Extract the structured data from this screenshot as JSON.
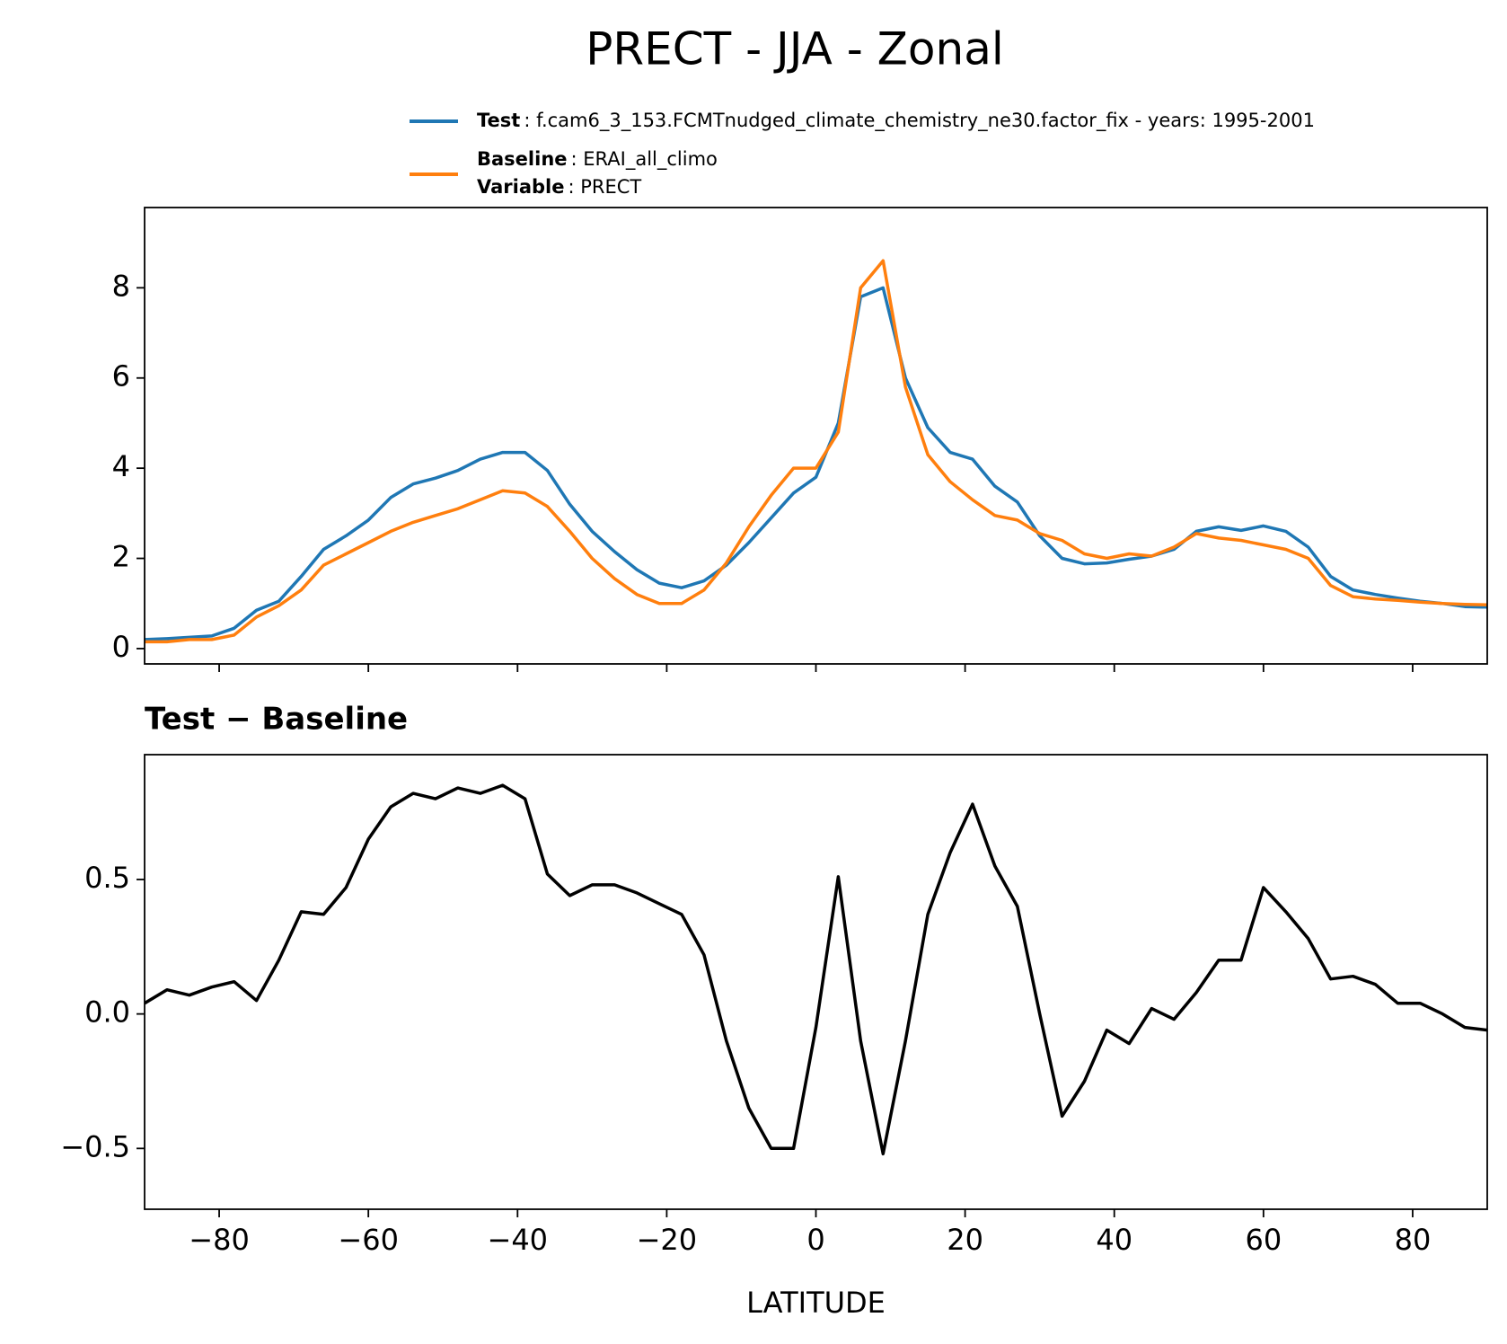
{
  "title": "PRECT - JJA - Zonal",
  "chart_data": [
    {
      "type": "line",
      "legend": "upper right",
      "legend_details": [
        ": f.cam6_3_153.FCMTnudged_climate_chemistry_ne30.factor_fix - years: 1995-2001",
        ": ERAI_all_climo"
      ],
      "legend_extra": {
        "name": "Variable",
        "detail": ": PRECT"
      },
      "x": [
        -90,
        -87,
        -84,
        -81,
        -78,
        -75,
        -72,
        -69,
        -66,
        -63,
        -60,
        -57,
        -54,
        -51,
        -48,
        -45,
        -42,
        -39,
        -36,
        -33,
        -30,
        -27,
        -24,
        -21,
        -18,
        -15,
        -12,
        -9,
        -6,
        -3,
        0,
        3,
        6,
        9,
        12,
        15,
        18,
        21,
        24,
        27,
        30,
        33,
        36,
        39,
        42,
        45,
        48,
        51,
        54,
        57,
        60,
        63,
        66,
        69,
        72,
        75,
        78,
        81,
        84,
        87,
        90
      ],
      "series": [
        {
          "name": "Test",
          "color": "#1f77b4",
          "values": [
            0.2,
            0.22,
            0.25,
            0.28,
            0.45,
            0.85,
            1.05,
            1.6,
            2.2,
            2.5,
            2.85,
            3.35,
            3.65,
            3.78,
            3.95,
            4.2,
            4.35,
            4.35,
            3.95,
            3.2,
            2.6,
            2.15,
            1.75,
            1.45,
            1.35,
            1.5,
            1.85,
            2.35,
            2.9,
            3.45,
            3.8,
            5.0,
            7.8,
            8.0,
            6.0,
            4.9,
            4.35,
            4.2,
            3.6,
            3.25,
            2.5,
            2.0,
            1.88,
            1.9,
            1.98,
            2.05,
            2.2,
            2.6,
            2.7,
            2.62,
            2.72,
            2.6,
            2.25,
            1.6,
            1.3,
            1.2,
            1.12,
            1.05,
            1.0,
            0.93,
            0.92
          ]
        },
        {
          "name": "Baseline",
          "color": "#ff7f0e",
          "values": [
            0.15,
            0.15,
            0.2,
            0.2,
            0.3,
            0.7,
            0.95,
            1.3,
            1.85,
            2.1,
            2.35,
            2.6,
            2.8,
            2.95,
            3.1,
            3.3,
            3.5,
            3.45,
            3.15,
            2.6,
            2.0,
            1.55,
            1.2,
            1.0,
            1.0,
            1.3,
            1.9,
            2.7,
            3.4,
            4.0,
            4.0,
            4.8,
            8.0,
            8.6,
            5.8,
            4.3,
            3.7,
            3.3,
            2.95,
            2.85,
            2.55,
            2.4,
            2.1,
            2.0,
            2.1,
            2.05,
            2.25,
            2.55,
            2.45,
            2.4,
            2.3,
            2.2,
            2.0,
            1.4,
            1.15,
            1.1,
            1.07,
            1.03,
            1.0,
            0.98,
            0.97
          ]
        }
      ],
      "xlim": [
        -90,
        90
      ],
      "xticks": [
        -80,
        -60,
        -40,
        -20,
        0,
        20,
        40,
        60,
        80
      ],
      "ylim": [
        -0.34,
        9.78
      ],
      "yticks": [
        0,
        2,
        4,
        6,
        8
      ]
    },
    {
      "type": "line",
      "title": "Test − Baseline",
      "x_label": "LATITUDE",
      "color": "#000000",
      "x": [
        -90,
        -87,
        -84,
        -81,
        -78,
        -75,
        -72,
        -69,
        -66,
        -63,
        -60,
        -57,
        -54,
        -51,
        -48,
        -45,
        -42,
        -39,
        -36,
        -33,
        -30,
        -27,
        -24,
        -21,
        -18,
        -15,
        -12,
        -9,
        -6,
        -3,
        0,
        3,
        6,
        9,
        12,
        15,
        18,
        21,
        24,
        27,
        30,
        33,
        36,
        39,
        42,
        45,
        48,
        51,
        54,
        57,
        60,
        63,
        66,
        69,
        72,
        75,
        78,
        81,
        84,
        87,
        90
      ],
      "values": [
        0.04,
        0.09,
        0.07,
        0.1,
        0.12,
        0.05,
        0.2,
        0.38,
        0.37,
        0.47,
        0.65,
        0.77,
        0.82,
        0.8,
        0.84,
        0.82,
        0.85,
        0.8,
        0.52,
        0.44,
        0.48,
        0.48,
        0.45,
        0.41,
        0.37,
        0.22,
        -0.1,
        -0.35,
        -0.5,
        -0.5,
        -0.05,
        0.51,
        -0.1,
        -0.52,
        -0.1,
        0.37,
        0.6,
        0.78,
        0.55,
        0.4,
        0.0,
        -0.38,
        -0.25,
        -0.06,
        -0.11,
        0.02,
        -0.02,
        0.08,
        0.2,
        0.2,
        0.47,
        0.38,
        0.28,
        0.13,
        0.14,
        0.11,
        0.04,
        0.04,
        0.0,
        -0.05,
        -0.06
      ],
      "xlim": [
        -90,
        90
      ],
      "xticks": [
        {
          "value": -80,
          "label": "−80"
        },
        {
          "value": -60,
          "label": "−60"
        },
        {
          "value": -40,
          "label": "−40"
        },
        {
          "value": -20,
          "label": "−20"
        },
        0,
        20,
        40,
        60,
        80
      ],
      "ylim": [
        -0.726,
        0.964
      ],
      "yticks": [
        {
          "value": -0.5,
          "label": "−0.5"
        },
        {
          "value": 0,
          "label": "0.0"
        },
        0.5
      ]
    }
  ]
}
